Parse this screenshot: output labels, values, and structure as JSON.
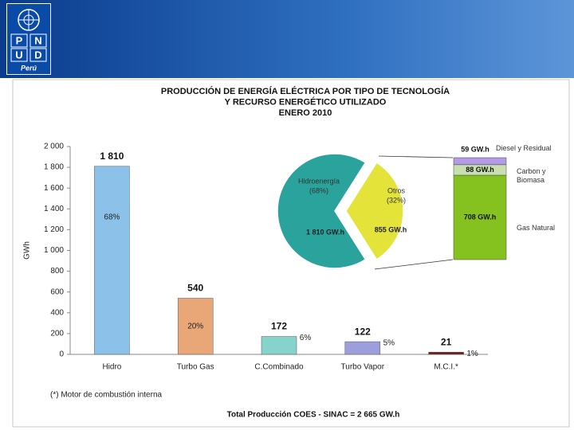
{
  "header": {
    "logo_letters": [
      "P",
      "N",
      "U",
      "D"
    ],
    "country": "Perú"
  },
  "chart_data": [
    {
      "type": "bar",
      "title": [
        "PRODUCCIÓN DE ENERGÍA ELÉCTRICA POR TIPO DE TECNOLOGÍA",
        "Y RECURSO ENERGÉTICO UTILIZADO",
        "ENERO 2010"
      ],
      "y_label": "GWh",
      "categories": [
        "Hidro",
        "Turbo Gas",
        "C.Combinado",
        "Turbo Vapor",
        "M.C.I.*"
      ],
      "values": [
        1810,
        540,
        172,
        122,
        21
      ],
      "value_labels": [
        "1 810",
        "540",
        "172",
        "122",
        "21"
      ],
      "shares": [
        {
          "value": 68,
          "label": "68%"
        },
        {
          "value": 20,
          "label": "20%"
        },
        {
          "value": 6,
          "label": "6%"
        },
        {
          "value": 5,
          "label": "5%"
        },
        {
          "value": 1,
          "label": "1%"
        }
      ],
      "colors": [
        "#8cc1ea",
        "#e9a778",
        "#86d3cb",
        "#9d9fdc",
        "#7a1c1c"
      ],
      "ylim": [
        0,
        2000
      ],
      "yticks": [
        0,
        200,
        400,
        600,
        800,
        {
          "value": 1000,
          "label": "1 000"
        },
        {
          "value": 1200,
          "label": "1 200"
        },
        {
          "value": 1400,
          "label": "1 400"
        },
        {
          "value": 1600,
          "label": "1 600"
        },
        {
          "value": 1800,
          "label": "1 800"
        },
        {
          "value": 2000,
          "label": "2 000"
        }
      ],
      "grid": false,
      "footnote": "(*) Motor de combustión interna",
      "total_note": "Total Producción COES - SINAC = 2 665 GW.h"
    },
    {
      "type": "pie",
      "categories": [
        "Hidroenergía",
        "Otros"
      ],
      "values": [
        1810,
        855
      ],
      "value_labels": [
        "1 810 GW.h",
        "855 GW.h"
      ],
      "shares": [
        {
          "value": 68,
          "label": "(68%)"
        },
        {
          "value": 32,
          "label": "(32%)"
        }
      ],
      "colors": [
        "#2aa39d",
        "#e3e33a"
      ]
    },
    {
      "type": "stacked_bar",
      "series": [
        {
          "name": "Gas Natural",
          "color": "#86c21f",
          "values": [
            708
          ],
          "value_labels": [
            "708 GW.h"
          ]
        },
        {
          "name": "Carbon y Biomasa",
          "color": "#c8e0b0",
          "values": [
            88
          ],
          "value_labels": [
            "88 GW.h"
          ]
        },
        {
          "name": "Diesel y Residual",
          "color": "#b59be6",
          "values": [
            59
          ],
          "value_labels": [
            "59 GW.h"
          ]
        }
      ]
    }
  ]
}
